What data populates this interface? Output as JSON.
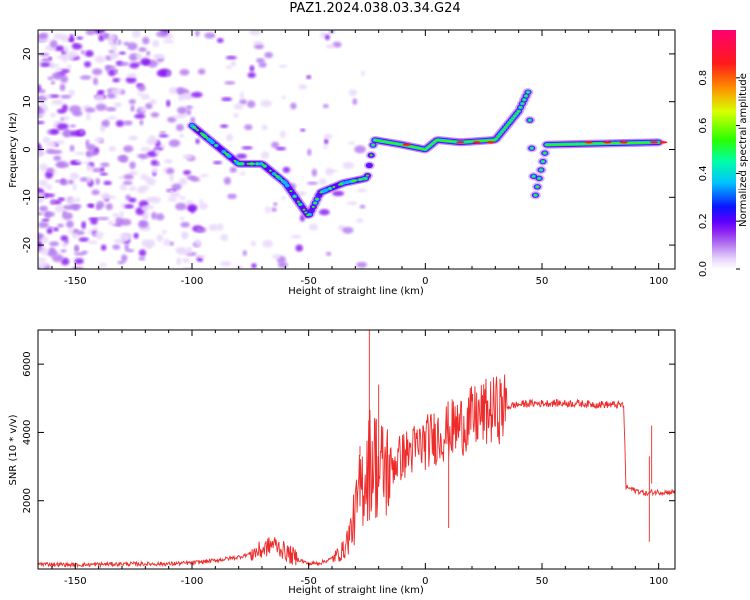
{
  "figure": {
    "title": "PAZ1.2024.038.03.34.G24"
  },
  "colors": {
    "snr_line": "#ee2a2a",
    "colormap": [
      "#ffffff",
      "#e9d8fb",
      "#b57cf0",
      "#8a1ff2",
      "#5a00ff",
      "#0a14ff",
      "#00c2ff",
      "#00ffa8",
      "#2bff00",
      "#d9ff00",
      "#ff8c00",
      "#ff1a1a",
      "#ff0070"
    ]
  },
  "chart_data": [
    {
      "type": "heatmap",
      "title": "",
      "xlabel": "Height of straight line (km)",
      "ylabel": "Frequency (Hz)",
      "xlim": [
        -166,
        107
      ],
      "ylim": [
        -25,
        25
      ],
      "x_ticks": [
        -150,
        -100,
        -50,
        0,
        50,
        100
      ],
      "y_ticks": [
        -20,
        -10,
        0,
        10,
        20
      ],
      "colorbar": {
        "label": "Normalized spectral amplitude",
        "range": [
          0.0,
          1.0
        ],
        "ticks": [
          0.0,
          0.2,
          0.4,
          0.6,
          0.8
        ]
      },
      "signal_track": {
        "description_values": [
          {
            "x": -100,
            "y": 5
          },
          {
            "x": -80,
            "y": -3
          },
          {
            "x": -70,
            "y": -3
          },
          {
            "x": -60,
            "y": -7
          },
          {
            "x": -50,
            "y": -14
          },
          {
            "x": -45,
            "y": -9
          },
          {
            "x": -35,
            "y": -7
          },
          {
            "x": -25,
            "y": -6
          },
          {
            "x": -22,
            "y": 2
          },
          {
            "x": -10,
            "y": 1
          },
          {
            "x": 0,
            "y": 0
          },
          {
            "x": 5,
            "y": 2
          },
          {
            "x": 15,
            "y": 1.5
          },
          {
            "x": 30,
            "y": 2
          },
          {
            "x": 40,
            "y": 8
          },
          {
            "x": 44,
            "y": 12
          },
          {
            "x": 47,
            "y": -10
          },
          {
            "x": 52,
            "y": 1
          },
          {
            "x": 100,
            "y": 1.5
          }
        ]
      }
    },
    {
      "type": "line",
      "title": "",
      "xlabel": "Height of straight line (km)",
      "ylabel": "SNR (10 * v/v)",
      "xlim": [
        -166,
        107
      ],
      "ylim": [
        0,
        7000
      ],
      "x_ticks": [
        -150,
        -100,
        -50,
        0,
        50,
        100
      ],
      "y_ticks": [
        2000,
        4000,
        6000
      ],
      "series": [
        {
          "x": [
            -166,
            -150,
            -130,
            -110,
            -100,
            -90,
            -80,
            -70,
            -65,
            -60,
            -55,
            -50,
            -45,
            -40,
            -35,
            -32,
            -30,
            -28,
            -26,
            -24,
            -22,
            -20,
            -18,
            -15,
            -10,
            -5,
            0,
            5,
            10,
            15,
            20,
            25,
            30,
            35,
            40,
            45,
            50,
            55,
            60,
            65,
            70,
            75,
            80,
            85,
            86,
            88,
            90,
            93,
            95,
            97,
            100,
            107
          ],
          "y": [
            150,
            120,
            150,
            150,
            180,
            250,
            350,
            550,
            750,
            500,
            300,
            150,
            180,
            300,
            550,
            1100,
            1600,
            2300,
            2700,
            3100,
            3300,
            2800,
            2900,
            3000,
            3300,
            3500,
            3700,
            3900,
            4050,
            4200,
            4400,
            4550,
            4650,
            4750,
            4820,
            4850,
            4850,
            4860,
            4850,
            4850,
            4830,
            4820,
            4810,
            4800,
            2400,
            2350,
            2300,
            2250,
            2200,
            2250,
            2250,
            2250
          ]
        }
      ]
    }
  ]
}
